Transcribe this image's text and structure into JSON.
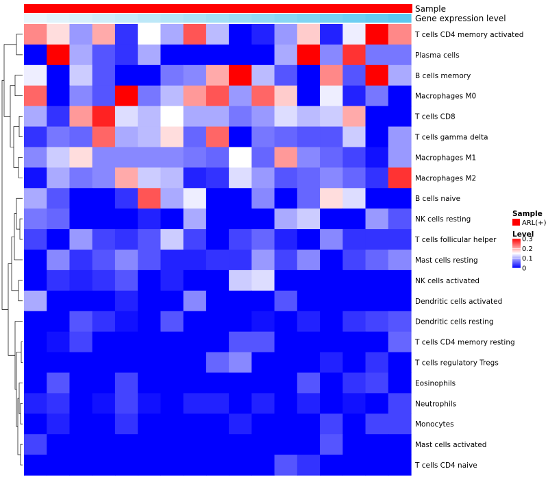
{
  "chart_data": {
    "type": "heatmap",
    "title": "",
    "annotation_tracks": [
      {
        "name": "Sample",
        "label": "Sample",
        "color": "#ff0000"
      },
      {
        "name": "Gene expression level",
        "label": "Gene expression level",
        "gradient": [
          "#eaf6fc",
          "#5bc8f0"
        ]
      }
    ],
    "rows": [
      "T cells CD4 memory activated",
      "Plasma cells",
      "B cells memory",
      "Macrophages M0",
      "T cells CD8",
      "T cells gamma delta",
      "Macrophages M1",
      "Macrophages M2",
      "B cells naive",
      "NK cells resting",
      "T cells follicular helper",
      "Mast cells resting",
      "NK cells activated",
      "Dendritic cells activated",
      "Dendritic cells resting",
      "T cells CD4 memory resting",
      "T cells regulatory  Tregs",
      "Eosinophils",
      "Neutrophils",
      "Monocytes",
      "Mast cells activated",
      "T cells CD4 naive"
    ],
    "n_columns": 17,
    "values": [
      [
        0.22,
        0.17,
        0.09,
        0.2,
        0.03,
        0.15,
        0.1,
        0.25,
        0.11,
        0.0,
        0.02,
        0.09,
        0.18,
        0.02,
        0.14,
        0.3,
        0.22
      ],
      [
        0.0,
        0.3,
        0.1,
        0.05,
        0.03,
        0.1,
        0.0,
        0.0,
        0.0,
        0.0,
        0.0,
        0.1,
        0.3,
        0.08,
        0.27,
        0.07,
        0.07
      ],
      [
        0.14,
        0.0,
        0.12,
        0.05,
        0.0,
        0.0,
        0.07,
        0.08,
        0.2,
        0.3,
        0.11,
        0.05,
        0.0,
        0.22,
        0.05,
        0.3,
        0.1
      ],
      [
        0.24,
        0.0,
        0.08,
        0.05,
        0.3,
        0.07,
        0.11,
        0.21,
        0.25,
        0.09,
        0.24,
        0.18,
        0.0,
        0.14,
        0.02,
        0.07,
        0.0
      ],
      [
        0.1,
        0.03,
        0.21,
        0.28,
        0.13,
        0.11,
        0.15,
        0.1,
        0.1,
        0.07,
        0.09,
        0.13,
        0.11,
        0.12,
        0.2,
        0.0,
        0.0
      ],
      [
        0.03,
        0.07,
        0.06,
        0.24,
        0.1,
        0.11,
        0.17,
        0.06,
        0.24,
        0.0,
        0.07,
        0.06,
        0.05,
        0.05,
        0.12,
        0.0,
        0.09
      ],
      [
        0.08,
        0.12,
        0.17,
        0.08,
        0.08,
        0.08,
        0.08,
        0.07,
        0.06,
        0.15,
        0.06,
        0.21,
        0.08,
        0.06,
        0.04,
        0.01,
        0.09
      ],
      [
        0.01,
        0.1,
        0.07,
        0.08,
        0.2,
        0.12,
        0.11,
        0.02,
        0.03,
        0.13,
        0.09,
        0.05,
        0.06,
        0.08,
        0.06,
        0.03,
        0.27
      ],
      [
        0.1,
        0.05,
        0.0,
        0.0,
        0.03,
        0.25,
        0.1,
        0.14,
        0.0,
        0.0,
        0.08,
        0.0,
        0.06,
        0.17,
        0.13,
        0.0,
        0.0
      ],
      [
        0.07,
        0.06,
        0.0,
        0.0,
        0.0,
        0.02,
        0.0,
        0.1,
        0.0,
        0.0,
        0.0,
        0.1,
        0.12,
        0.0,
        0.0,
        0.09,
        0.05
      ],
      [
        0.04,
        0.0,
        0.09,
        0.04,
        0.03,
        0.05,
        0.12,
        0.04,
        0.0,
        0.04,
        0.06,
        0.02,
        0.0,
        0.08,
        0.03,
        0.03,
        0.03
      ],
      [
        0.0,
        0.08,
        0.03,
        0.05,
        0.08,
        0.05,
        0.02,
        0.02,
        0.03,
        0.03,
        0.09,
        0.04,
        0.08,
        0.0,
        0.04,
        0.06,
        0.08
      ],
      [
        0.0,
        0.03,
        0.02,
        0.03,
        0.05,
        0.0,
        0.02,
        0.0,
        0.0,
        0.12,
        0.13,
        0.0,
        0.0,
        0.0,
        0.0,
        0.0,
        0.0
      ],
      [
        0.1,
        0.0,
        0.0,
        0.0,
        0.02,
        0.0,
        0.0,
        0.08,
        0.0,
        0.0,
        0.0,
        0.05,
        0.0,
        0.0,
        0.0,
        0.0,
        0.0
      ],
      [
        0.0,
        0.0,
        0.05,
        0.03,
        0.01,
        0.0,
        0.05,
        0.0,
        0.0,
        0.0,
        0.01,
        0.0,
        0.02,
        0.0,
        0.03,
        0.04,
        0.05
      ],
      [
        0.0,
        0.01,
        0.04,
        0.0,
        0.0,
        0.0,
        0.0,
        0.0,
        0.0,
        0.05,
        0.05,
        0.0,
        0.0,
        0.0,
        0.0,
        0.0,
        0.06
      ],
      [
        0.0,
        0.0,
        0.0,
        0.0,
        0.0,
        0.0,
        0.0,
        0.0,
        0.06,
        0.08,
        0.0,
        0.0,
        0.0,
        0.02,
        0.0,
        0.03,
        0.0
      ],
      [
        0.0,
        0.05,
        0.0,
        0.0,
        0.04,
        0.0,
        0.0,
        0.0,
        0.0,
        0.0,
        0.0,
        0.0,
        0.05,
        0.0,
        0.03,
        0.04,
        0.0
      ],
      [
        0.02,
        0.03,
        0.0,
        0.01,
        0.04,
        0.01,
        0.0,
        0.02,
        0.02,
        0.0,
        0.02,
        0.0,
        0.02,
        0.0,
        0.01,
        0.0,
        0.04
      ],
      [
        0.0,
        0.02,
        0.0,
        0.0,
        0.03,
        0.0,
        0.0,
        0.0,
        0.0,
        0.02,
        0.0,
        0.0,
        0.0,
        0.04,
        0.0,
        0.04,
        0.04
      ],
      [
        0.04,
        0.0,
        0.0,
        0.0,
        0.0,
        0.0,
        0.0,
        0.0,
        0.0,
        0.0,
        0.0,
        0.0,
        0.0,
        0.05,
        0.0,
        0.0,
        0.0
      ],
      [
        0.0,
        0.0,
        0.0,
        0.0,
        0.0,
        0.0,
        0.0,
        0.0,
        0.0,
        0.0,
        0.0,
        0.05,
        0.03,
        0.0,
        0.0,
        0.0,
        0.0
      ]
    ],
    "color_scale": {
      "min": 0,
      "mid": 0.15,
      "max": 0.3,
      "low": "#0000ff",
      "mid_color": "#ffffff",
      "high": "#ff0000"
    },
    "legend": {
      "placement": "right",
      "sample_title": "Sample",
      "sample_entry": "ARL(+)",
      "level_title": "Level",
      "level_ticks": [
        {
          "value": 0.3,
          "label": "0.3"
        },
        {
          "value": 0.2,
          "label": "0.2"
        },
        {
          "value": 0.1,
          "label": "0.1"
        },
        {
          "value": 0,
          "label": "0"
        }
      ]
    },
    "dendrogram": "row-clustering (left)"
  }
}
